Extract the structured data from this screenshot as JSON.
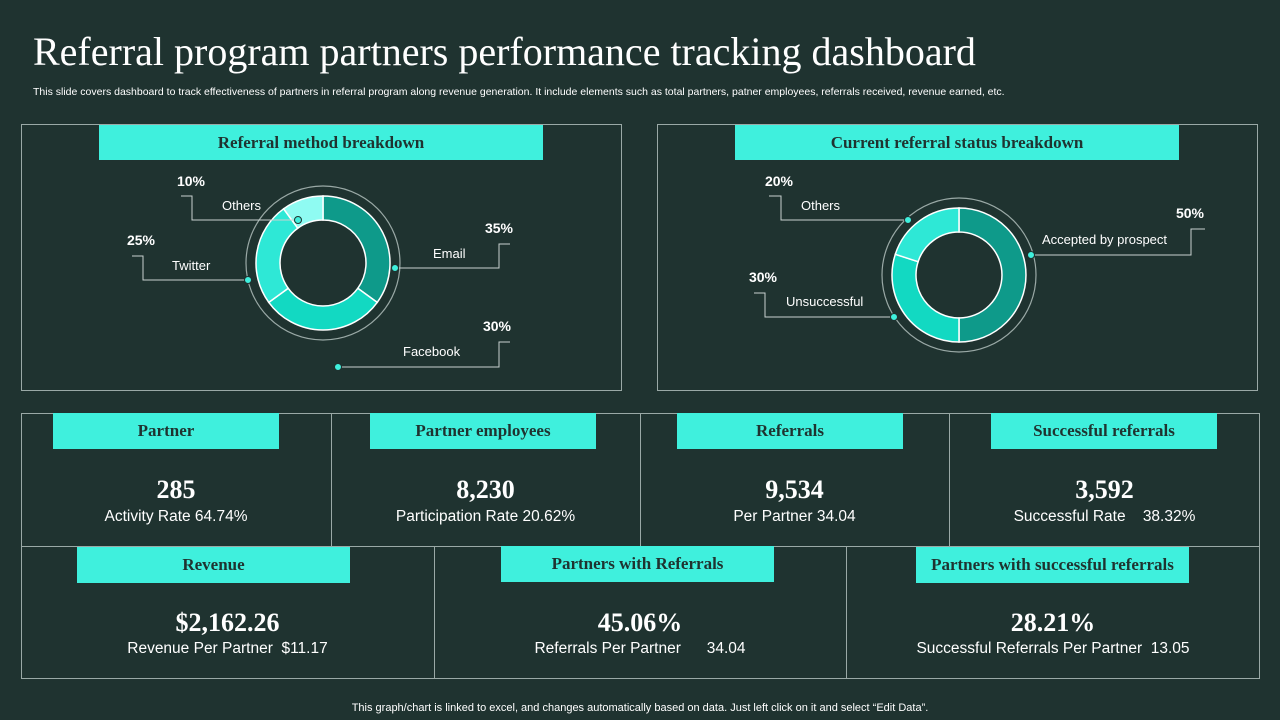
{
  "header": {
    "title": "Referral program partners performance tracking dashboard",
    "subtitle": "This slide covers dashboard to track effectiveness of partners in referral program along revenue generation. It include elements such as total partners, patner employees, referrals received, revenue earned, etc."
  },
  "colors": {
    "background": "#1f3330",
    "accent": "#3ff0dd",
    "dark_teal": "#0e9a8a",
    "mid_teal": "#12d9c2",
    "light_teal": "#7ffaf0"
  },
  "chart_data": [
    {
      "type": "pie",
      "title": "Referral method breakdown",
      "categories": [
        "Email",
        "Facebook",
        "Twitter",
        "Others"
      ],
      "values": [
        35,
        30,
        25,
        10
      ],
      "labels": [
        "35%",
        "30%",
        "25%",
        "10%"
      ]
    },
    {
      "type": "pie",
      "title": "Current referral status breakdown",
      "categories": [
        "Accepted by prospect",
        "Unsuccessful",
        "Others"
      ],
      "values": [
        50,
        30,
        20
      ],
      "labels": [
        "50%",
        "30%",
        "20%"
      ]
    }
  ],
  "kpis": [
    {
      "title": "Partner",
      "value": "285",
      "sub": "Activity Rate 64.74%"
    },
    {
      "title": "Partner employees",
      "value": "8,230",
      "sub": "Participation Rate 20.62%"
    },
    {
      "title": "Referrals",
      "value": "9,534",
      "sub": "Per Partner 34.04"
    },
    {
      "title": "Successful referrals",
      "value": "3,592",
      "sub": "Successful Rate    38.32%"
    },
    {
      "title": "Revenue",
      "value": "$2,162.26",
      "sub": "Revenue Per Partner  $11.17"
    },
    {
      "title": "Partners with Referrals",
      "value": "45.06%",
      "sub": "Referrals Per Partner      34.04"
    },
    {
      "title": "Partners with successful referrals",
      "value": "28.21%",
      "sub": "Successful Referrals Per Partner  13.05"
    }
  ],
  "footer": "This graph/chart is linked to excel,  and changes automatically based on data. Just left click on it and select “Edit Data”."
}
